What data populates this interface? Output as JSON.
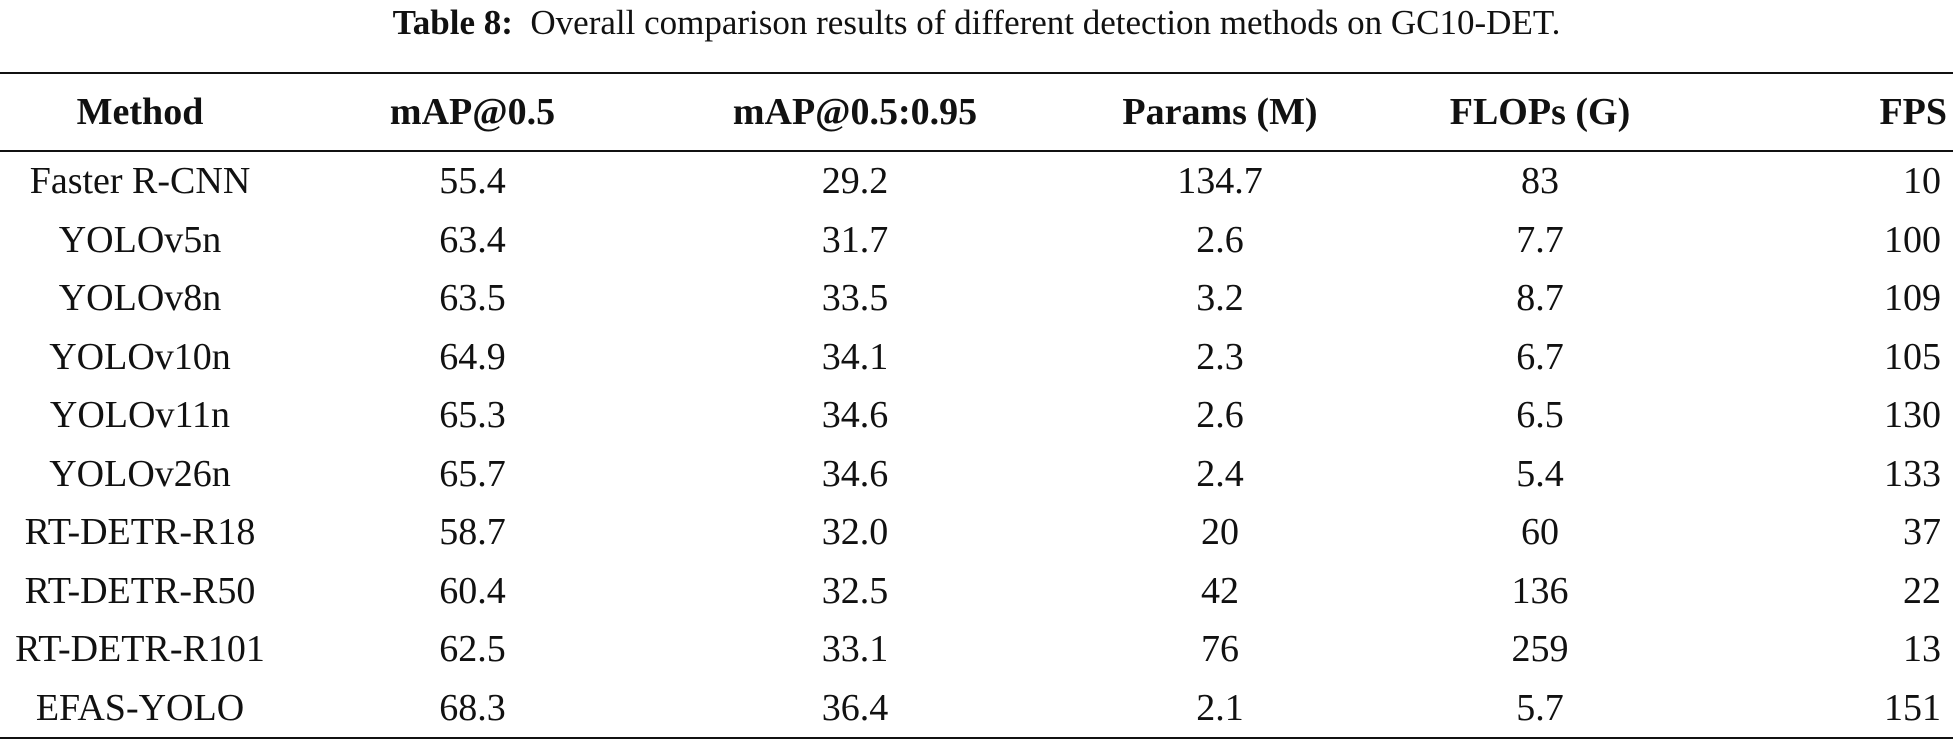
{
  "caption": {
    "label": "Table 8:",
    "text": "Overall comparison results of different detection methods on GC10-DET."
  },
  "table": {
    "headers": {
      "method": "Method",
      "map50": "mAP@0.5",
      "map5095": "mAP@0.5:0.95",
      "params": "Params (M)",
      "flops": "FLOPs (G)",
      "fps": "FPS"
    },
    "rows": [
      {
        "method": "Faster R-CNN",
        "map50": "55.4",
        "map5095": "29.2",
        "params": "134.7",
        "flops": "83",
        "fps": "10"
      },
      {
        "method": "YOLOv5n",
        "map50": "63.4",
        "map5095": "31.7",
        "params": "2.6",
        "flops": "7.7",
        "fps": "100"
      },
      {
        "method": "YOLOv8n",
        "map50": "63.5",
        "map5095": "33.5",
        "params": "3.2",
        "flops": "8.7",
        "fps": "109"
      },
      {
        "method": "YOLOv10n",
        "map50": "64.9",
        "map5095": "34.1",
        "params": "2.3",
        "flops": "6.7",
        "fps": "105"
      },
      {
        "method": "YOLOv11n",
        "map50": "65.3",
        "map5095": "34.6",
        "params": "2.6",
        "flops": "6.5",
        "fps": "130"
      },
      {
        "method": "YOLOv26n",
        "map50": "65.7",
        "map5095": "34.6",
        "params": "2.4",
        "flops": "5.4",
        "fps": "133"
      },
      {
        "method": "RT-DETR-R18",
        "map50": "58.7",
        "map5095": "32.0",
        "params": "20",
        "flops": "60",
        "fps": "37"
      },
      {
        "method": "RT-DETR-R50",
        "map50": "60.4",
        "map5095": "32.5",
        "params": "42",
        "flops": "136",
        "fps": "22"
      },
      {
        "method": "RT-DETR-R101",
        "map50": "62.5",
        "map5095": "33.1",
        "params": "76",
        "flops": "259",
        "fps": "13"
      },
      {
        "method": "EFAS-YOLO",
        "map50": "68.3",
        "map5095": "36.4",
        "params": "2.1",
        "flops": "5.7",
        "fps": "151"
      }
    ]
  }
}
